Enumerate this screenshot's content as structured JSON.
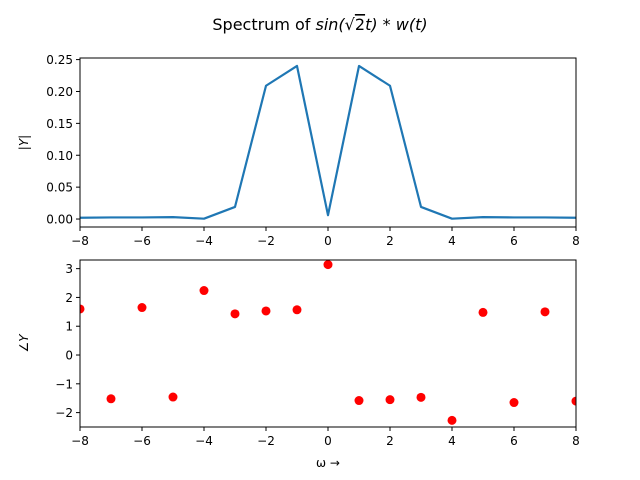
{
  "chart_data": [
    {
      "type": "line",
      "title": "Spectrum of sin(√2t) * w(t)",
      "title_parts": {
        "prefix": "Spectrum of ",
        "func": "sin(",
        "sqrt": "√",
        "radicand": "2",
        "var": "t",
        "close": ")",
        "op": " * ",
        "w": "w",
        "wt": "(t)"
      },
      "xlabel": "",
      "ylabel": "|Y|",
      "xlim": [
        -8,
        8
      ],
      "ylim": [
        -0.0125,
        0.2525
      ],
      "xticks": [
        -8,
        -6,
        -4,
        -2,
        0,
        2,
        4,
        6,
        8
      ],
      "yticks": [
        0.0,
        0.05,
        0.1,
        0.15,
        0.2,
        0.25
      ],
      "grid": false,
      "series": [
        {
          "color": "#1f77b4",
          "x": [
            -8,
            -7,
            -6,
            -5,
            -4,
            -3,
            -2,
            -1,
            0,
            1,
            2,
            3,
            4,
            5,
            6,
            7,
            8
          ],
          "y": [
            0.002,
            0.0025,
            0.0025,
            0.003,
            0.0005,
            0.019,
            0.209,
            0.24,
            0.006,
            0.24,
            0.209,
            0.019,
            0.0005,
            0.003,
            0.0025,
            0.0025,
            0.002
          ]
        }
      ]
    },
    {
      "type": "scatter",
      "xlabel": "ω →",
      "ylabel": "∠Y",
      "xlim": [
        -8,
        8
      ],
      "ylim": [
        -2.5,
        3.3
      ],
      "xticks": [
        -8,
        -6,
        -4,
        -2,
        0,
        2,
        4,
        6,
        8
      ],
      "yticks": [
        -2,
        -1,
        0,
        1,
        2,
        3
      ],
      "grid": false,
      "series": [
        {
          "color": "#ff0000",
          "x": [
            -8,
            -7,
            -6,
            -5,
            -4,
            -3,
            -2,
            -1,
            0,
            1,
            2,
            3,
            4,
            5,
            6,
            7,
            8
          ],
          "y": [
            1.6,
            -1.52,
            1.65,
            -1.46,
            2.24,
            1.43,
            1.53,
            1.57,
            3.14,
            -1.58,
            -1.55,
            -1.47,
            -2.27,
            1.48,
            -1.65,
            1.5,
            -1.6
          ]
        }
      ]
    }
  ]
}
